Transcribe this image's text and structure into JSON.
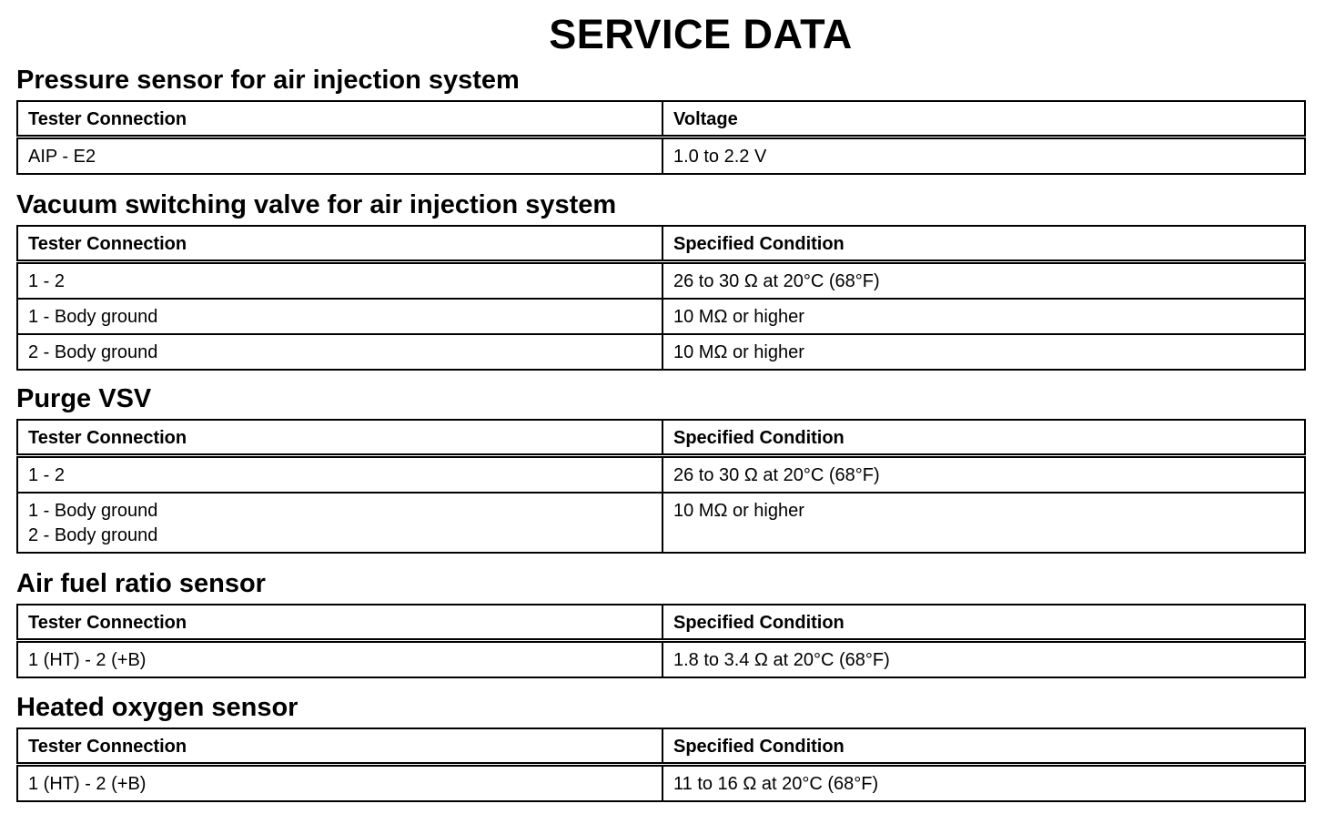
{
  "title": "SERVICE DATA",
  "sections": [
    {
      "heading": "Pressure sensor for air injection system",
      "columns": [
        "Tester Connection",
        "Voltage"
      ],
      "rows": [
        [
          "AIP - E2",
          "1.0 to 2.2 V"
        ]
      ]
    },
    {
      "heading": "Vacuum switching valve for air injection system",
      "columns": [
        "Tester Connection",
        "Specified Condition"
      ],
      "rows": [
        [
          "1 - 2",
          "26 to 30 Ω at 20°C (68°F)"
        ],
        [
          "1 - Body ground",
          "10 MΩ or higher"
        ],
        [
          "2 - Body ground",
          "10 MΩ or higher"
        ]
      ]
    },
    {
      "heading": "Purge VSV",
      "columns": [
        "Tester Connection",
        "Specified Condition"
      ],
      "rows": [
        [
          "1 - 2",
          "26 to 30 Ω at 20°C (68°F)"
        ],
        [
          "1 - Body ground",
          "10 MΩ or higher"
        ]
      ],
      "row_extra_line": "2 - Body ground"
    },
    {
      "heading": "Air fuel ratio sensor",
      "columns": [
        "Tester Connection",
        "Specified Condition"
      ],
      "rows": [
        [
          "1 (HT) - 2 (+B)",
          "1.8 to 3.4 Ω at 20°C (68°F)"
        ]
      ]
    },
    {
      "heading": "Heated oxygen sensor",
      "columns": [
        "Tester Connection",
        "Specified Condition"
      ],
      "rows": [
        [
          "1 (HT) - 2 (+B)",
          "11 to 16 Ω at 20°C (68°F)"
        ]
      ]
    }
  ]
}
